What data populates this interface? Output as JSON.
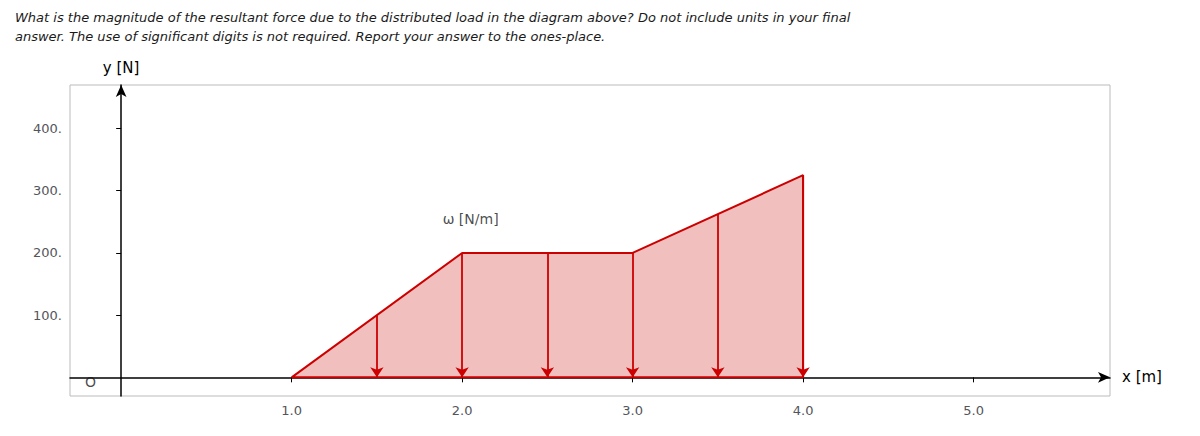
{
  "chart_data": {
    "type": "area",
    "title": "What is the magnitude of the resultant force due to the distributed load in the diagram above? Do not include units in your final",
    "subtitle": "answer. The use of significant digits is not required. Report your answer to the ones-place.",
    "x_label": "x [m]",
    "y_label": "y [N]",
    "xlim": [
      -0.3,
      5.8
    ],
    "ylim": [
      -30,
      470
    ],
    "xticks": [
      {
        "value": 1.0,
        "label": "1.0"
      },
      {
        "value": 2.0,
        "label": "2.0"
      },
      {
        "value": 3.0,
        "label": "3.0"
      },
      {
        "value": 4.0,
        "label": "4.0"
      },
      {
        "value": 5.0,
        "label": "5.0"
      }
    ],
    "yticks": [
      {
        "value": 100,
        "label": "100."
      },
      {
        "value": 200,
        "label": "200."
      },
      {
        "value": 300,
        "label": "300."
      },
      {
        "value": 400,
        "label": "400."
      }
    ],
    "grid": false,
    "series": [
      {
        "type": "area",
        "color": "#cc0000",
        "x": [
          1.0,
          2.0,
          3.0,
          4.0,
          4.0,
          1.0
        ],
        "values": [
          0,
          200,
          200,
          325,
          0,
          0
        ]
      },
      {
        "type": "arrow",
        "color": "#cc0000",
        "x": [
          1.5,
          2.0,
          2.5,
          3.0,
          3.5,
          4.0
        ],
        "values": [
          100,
          200,
          200,
          200,
          262.5,
          325
        ]
      }
    ],
    "annotations": [
      {
        "text": "O",
        "x": -0.18,
        "y": -8
      },
      {
        "text": "ω [N/m]",
        "x": 2.05,
        "y": 255
      }
    ]
  }
}
